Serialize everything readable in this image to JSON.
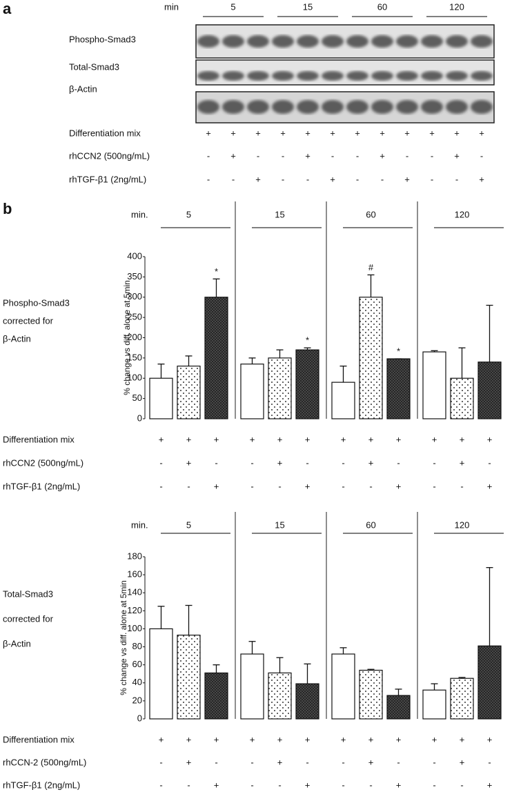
{
  "panel_a": {
    "label": "a",
    "time_label": "min",
    "times": [
      "5",
      "15",
      "60",
      "120"
    ],
    "rows": [
      "Phospho-Smad3",
      "Total-Smad3",
      "β-Actin"
    ],
    "treatments": [
      {
        "name": "Differentiation mix",
        "signs": [
          "+",
          "+",
          "+",
          "+",
          "+",
          "+",
          "+",
          "+",
          "+",
          "+",
          "+",
          "+"
        ]
      },
      {
        "name": "rhCCN2 (500ng/mL)",
        "signs": [
          "-",
          "+",
          "-",
          "-",
          "+",
          "-",
          "-",
          "+",
          "-",
          "-",
          "+",
          "-"
        ]
      },
      {
        "name": "rhTGF-β1 (2ng/mL)",
        "signs": [
          "-",
          "-",
          "+",
          "-",
          "-",
          "+",
          "-",
          "-",
          "+",
          "-",
          "-",
          "+"
        ]
      }
    ]
  },
  "panel_b_label": "b",
  "chart_data": [
    {
      "type": "bar",
      "side_label": [
        "Phospho-Smad3",
        "corrected for",
        "β-Actin"
      ],
      "y_label": "% change vs diff. alone at 5min",
      "group_label": "min.",
      "groups": [
        "5",
        "15",
        "60",
        "120"
      ],
      "ylim": [
        0,
        400
      ],
      "yticks": [
        0,
        50,
        100,
        150,
        200,
        250,
        300,
        350,
        400
      ],
      "series": [
        {
          "pattern": "open",
          "values": [
            100,
            135,
            90,
            165
          ],
          "errors": [
            35,
            15,
            40,
            3
          ],
          "annotations": [
            null,
            null,
            null,
            null
          ]
        },
        {
          "pattern": "dots",
          "values": [
            130,
            150,
            300,
            100
          ],
          "errors": [
            25,
            20,
            55,
            75
          ],
          "annotations": [
            null,
            null,
            "#",
            null
          ]
        },
        {
          "pattern": "hatch",
          "values": [
            300,
            170,
            148,
            140
          ],
          "errors": [
            45,
            5,
            0,
            140
          ],
          "annotations": [
            "*",
            "*",
            "*",
            null
          ]
        }
      ],
      "treatments": [
        {
          "name": "Differentiation mix",
          "signs": [
            "+",
            "+",
            "+",
            "+",
            "+",
            "+",
            "+",
            "+",
            "+",
            "+",
            "+",
            "+"
          ]
        },
        {
          "name": "rhCCN2  (500ng/mL)",
          "signs": [
            "-",
            "+",
            "-",
            "-",
            "+",
            "-",
            "-",
            "+",
            "-",
            "-",
            "+",
            "-"
          ]
        },
        {
          "name": "rhTGF-β1 (2ng/mL)",
          "signs": [
            "-",
            "-",
            "+",
            "-",
            "-",
            "+",
            "-",
            "-",
            "+",
            "-",
            "-",
            "+"
          ]
        }
      ]
    },
    {
      "type": "bar",
      "side_label": [
        "Total-Smad3",
        "corrected for",
        "β-Actin"
      ],
      "y_label": "% change vs diff. alone at 5min",
      "group_label": "min.",
      "groups": [
        "5",
        "15",
        "60",
        "120"
      ],
      "ylim": [
        0,
        180
      ],
      "yticks": [
        0,
        20,
        40,
        60,
        80,
        100,
        120,
        140,
        160,
        180
      ],
      "series": [
        {
          "pattern": "open",
          "values": [
            100,
            72,
            72,
            32
          ],
          "errors": [
            25,
            14,
            7,
            7
          ],
          "annotations": [
            null,
            null,
            null,
            null
          ]
        },
        {
          "pattern": "dots",
          "values": [
            93,
            51,
            54,
            45
          ],
          "errors": [
            33,
            17,
            1,
            1
          ],
          "annotations": [
            null,
            null,
            null,
            null
          ]
        },
        {
          "pattern": "hatch",
          "values": [
            51,
            39,
            26,
            81
          ],
          "errors": [
            9,
            22,
            7,
            87
          ],
          "annotations": [
            null,
            null,
            null,
            null
          ]
        }
      ],
      "treatments": [
        {
          "name": "Differentiation mix",
          "signs": [
            "+",
            "+",
            "+",
            "+",
            "+",
            "+",
            "+",
            "+",
            "+",
            "+",
            "+",
            "+"
          ]
        },
        {
          "name": "rhCCN-2 (500ng/mL)",
          "signs": [
            "-",
            "+",
            "-",
            "-",
            "+",
            "-",
            "-",
            "+",
            "-",
            "-",
            "+",
            "-"
          ]
        },
        {
          "name": "rhTGF-β1 (2ng/mL)",
          "signs": [
            "-",
            "-",
            "+",
            "-",
            "-",
            "+",
            "-",
            "-",
            "+",
            "-",
            "-",
            "+"
          ]
        }
      ]
    }
  ]
}
